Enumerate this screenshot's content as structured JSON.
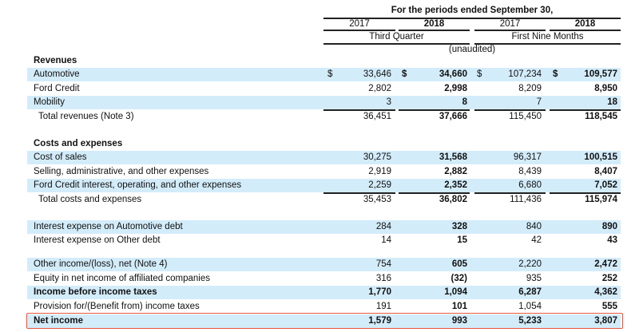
{
  "header": {
    "title": "For the periods ended September 30,",
    "years": [
      "2017",
      "2018",
      "2017",
      "2018"
    ],
    "periods": [
      "Third Quarter",
      "First Nine Months"
    ],
    "note": "(unaudited)"
  },
  "colors": {
    "shade": "#d3ecfa",
    "highlight_box": "#e8553e"
  },
  "rows": [
    {
      "label": "Revenues",
      "type": "section"
    },
    {
      "label": "Automotive",
      "values": [
        "33,646",
        "34,660",
        "107,234",
        "109,577"
      ],
      "dollar": true,
      "shade": true
    },
    {
      "label": "Ford Credit",
      "values": [
        "2,802",
        "2,998",
        "8,209",
        "8,950"
      ]
    },
    {
      "label": "Mobility",
      "values": [
        "3",
        "8",
        "7",
        "18"
      ],
      "shade": true,
      "underline": true
    },
    {
      "label": "Total revenues (Note 3)",
      "values": [
        "36,451",
        "37,666",
        "115,450",
        "118,545"
      ],
      "indent": true
    },
    {
      "label": "Costs and expenses",
      "type": "section"
    },
    {
      "label": "Cost of sales",
      "values": [
        "30,275",
        "31,568",
        "96,317",
        "100,515"
      ],
      "shade": true
    },
    {
      "label": "Selling, administrative, and other expenses",
      "values": [
        "2,919",
        "2,882",
        "8,439",
        "8,407"
      ]
    },
    {
      "label": "Ford Credit interest, operating, and other expenses",
      "values": [
        "2,259",
        "2,352",
        "6,680",
        "7,052"
      ],
      "shade": true,
      "underline": true
    },
    {
      "label": "Total costs and expenses",
      "values": [
        "35,453",
        "36,802",
        "111,436",
        "115,974"
      ],
      "indent": true
    },
    {
      "label": "Interest expense on Automotive debt",
      "values": [
        "284",
        "328",
        "840",
        "890"
      ],
      "shade": true
    },
    {
      "label": "Interest expense on Other debt",
      "values": [
        "14",
        "15",
        "42",
        "43"
      ]
    },
    {
      "label": "Other income/(loss), net (Note 4)",
      "values": [
        "754",
        "605",
        "2,220",
        "2,472"
      ],
      "shade": true
    },
    {
      "label": "Equity in net income of affiliated companies",
      "values": [
        "316",
        "(32)",
        "935",
        "252"
      ],
      "underline": true
    },
    {
      "label": "Income before income taxes",
      "values": [
        "1,770",
        "1,094",
        "6,287",
        "4,362"
      ],
      "shade": true,
      "bold": true
    },
    {
      "label": "Provision for/(Benefit from) income taxes",
      "values": [
        "191",
        "101",
        "1,054",
        "555"
      ]
    },
    {
      "label": "Net income",
      "values": [
        "1,579",
        "993",
        "5,233",
        "3,807"
      ],
      "shade": true,
      "bold": true,
      "highlighted": true
    }
  ]
}
